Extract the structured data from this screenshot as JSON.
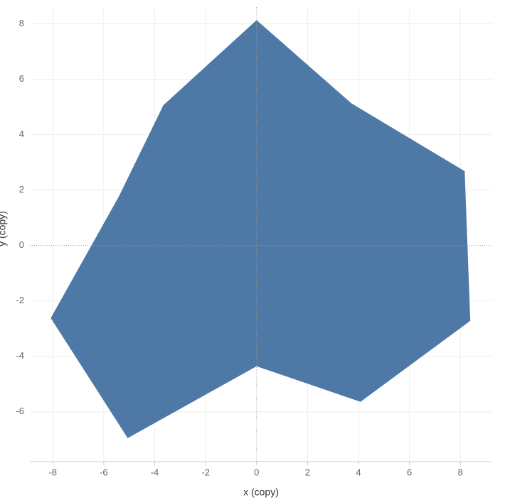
{
  "chart_data": {
    "type": "polygon",
    "x_label": "x (copy)",
    "y_label": "y (copy)",
    "x": [
      0,
      3.72,
      8.17,
      8.39,
      4.08,
      0,
      -5.06,
      -8.08,
      -5.4,
      -3.66
    ],
    "y": [
      8.13,
      5.13,
      2.68,
      -2.72,
      -5.64,
      -4.36,
      -6.95,
      -2.62,
      1.78,
      5.06
    ],
    "color": "#4e79a7",
    "xlim": [
      -8.9,
      9.25
    ],
    "xticks": [
      -8,
      -6,
      -4,
      -2,
      0,
      2,
      4,
      6,
      8
    ],
    "ylim": [
      -7.8,
      8.6
    ],
    "yticks": [
      -6,
      -4,
      -2,
      0,
      2,
      4,
      6,
      8
    ],
    "grid": true
  }
}
